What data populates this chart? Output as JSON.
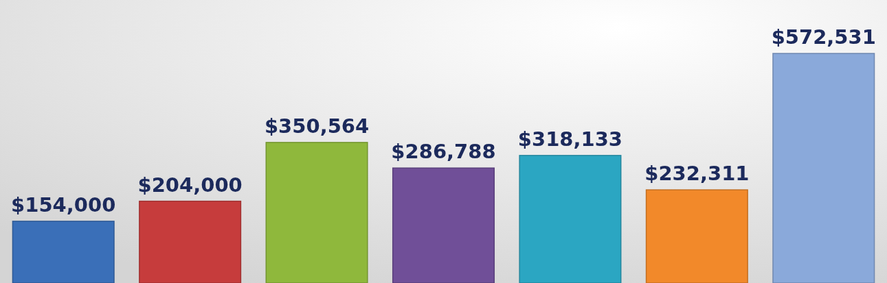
{
  "chart_data": {
    "type": "bar",
    "categories": [
      null,
      null,
      null,
      null,
      null,
      null,
      null
    ],
    "values": [
      154000,
      204000,
      350564,
      286788,
      318133,
      232311,
      572531
    ],
    "colors": [
      "#3a6fb8",
      "#c63c3c",
      "#8fb83c",
      "#704f98",
      "#2ba6c2",
      "#f2892a",
      "#8aa9da"
    ],
    "value_labels": [
      "$154,000",
      "$204,000",
      "$350,564",
      "$286,788",
      "$318,133",
      "$232,311",
      "$572,531"
    ]
  }
}
